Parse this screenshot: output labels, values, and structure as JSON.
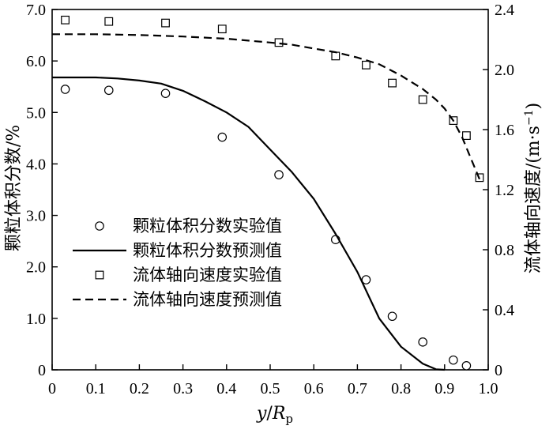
{
  "chart_data": {
    "type": "line",
    "x_axis": {
      "label_italic": "y",
      "label_slash": "/",
      "label_italic2": "R",
      "label_subscript": "p",
      "range": [
        0,
        1.0
      ],
      "ticks": [
        0,
        0.1,
        0.2,
        0.3,
        0.4,
        0.5,
        0.6,
        0.7,
        0.8,
        0.9,
        1.0
      ],
      "tick_labels": [
        "0",
        "0.1",
        "0.2",
        "0.3",
        "0.4",
        "0.5",
        "0.6",
        "0.7",
        "0.8",
        "0.9",
        "1.0"
      ]
    },
    "y_left": {
      "label": "颗粒体积分数/%",
      "range": [
        0,
        7.0
      ],
      "ticks": [
        0,
        1,
        2,
        3,
        4,
        5,
        6,
        7
      ],
      "tick_labels": [
        "0",
        "1.0",
        "2.0",
        "3.0",
        "4.0",
        "5.0",
        "6.0",
        "7.0"
      ]
    },
    "y_right": {
      "label": "流体轴向速度/(m·s",
      "label_superscript": "−1",
      "label_close": ")",
      "range": [
        0,
        2.4
      ],
      "ticks": [
        0,
        0.4,
        0.8,
        1.2,
        1.6,
        2.0,
        2.4
      ],
      "tick_labels": [
        "0",
        "0.4",
        "0.8",
        "1.2",
        "1.6",
        "2.0",
        "2.4"
      ]
    },
    "legend_position": "lower-left",
    "series": [
      {
        "name": "颗粒体积分数实验值",
        "style": "circle-markers",
        "axis": "left",
        "x": [
          0.03,
          0.13,
          0.26,
          0.39,
          0.52,
          0.65,
          0.72,
          0.78,
          0.85,
          0.92,
          0.95
        ],
        "y": [
          5.45,
          5.43,
          5.37,
          4.52,
          3.79,
          2.53,
          1.75,
          1.04,
          0.54,
          0.19,
          0.08
        ]
      },
      {
        "name": "颗粒体积分数预测值",
        "style": "solid-line",
        "axis": "left",
        "x": [
          0.0,
          0.05,
          0.1,
          0.15,
          0.2,
          0.25,
          0.3,
          0.35,
          0.4,
          0.45,
          0.5,
          0.55,
          0.6,
          0.65,
          0.7,
          0.75,
          0.8,
          0.85,
          0.88,
          0.9
        ],
        "y": [
          5.68,
          5.68,
          5.68,
          5.66,
          5.62,
          5.56,
          5.42,
          5.22,
          5.0,
          4.72,
          4.28,
          3.84,
          3.32,
          2.64,
          1.9,
          1.0,
          0.45,
          0.12,
          0.01,
          0.0
        ]
      },
      {
        "name": "流体轴向速度实验值",
        "style": "square-markers",
        "axis": "right",
        "x": [
          0.03,
          0.13,
          0.26,
          0.39,
          0.52,
          0.65,
          0.72,
          0.78,
          0.85,
          0.92,
          0.95,
          0.98
        ],
        "y": [
          2.33,
          2.32,
          2.31,
          2.27,
          2.18,
          2.09,
          2.03,
          1.91,
          1.8,
          1.66,
          1.56,
          1.28
        ]
      },
      {
        "name": "流体轴向速度预测值",
        "style": "dashed-line",
        "axis": "right",
        "x": [
          0.0,
          0.1,
          0.2,
          0.3,
          0.4,
          0.5,
          0.55,
          0.6,
          0.65,
          0.7,
          0.75,
          0.8,
          0.85,
          0.88,
          0.9,
          0.92,
          0.94,
          0.96,
          0.98
        ],
        "y": [
          2.235,
          2.235,
          2.23,
          2.22,
          2.205,
          2.18,
          2.165,
          2.14,
          2.115,
          2.08,
          2.035,
          1.96,
          1.87,
          1.8,
          1.74,
          1.66,
          1.55,
          1.41,
          1.27
        ]
      }
    ]
  }
}
